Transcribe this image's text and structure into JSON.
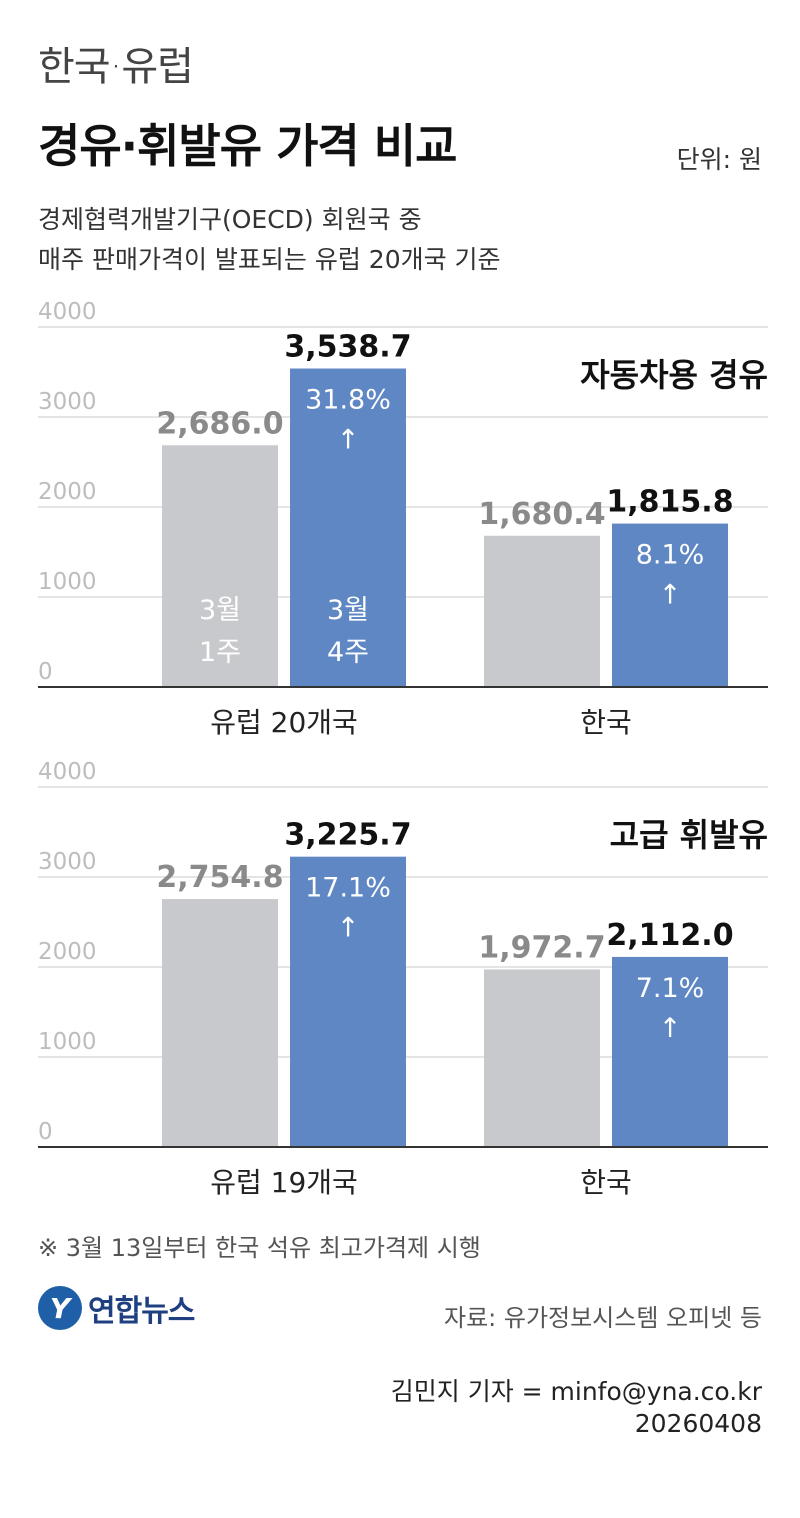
{
  "header": {
    "title_top": "한국·유럽",
    "title_main": "경유·휘발유 가격 비교",
    "unit": "단위: 원",
    "subtitle_line1": "경제협력개발기구(OECD) 회원국 중",
    "subtitle_line2": "매주 판매가격이 발표되는 유럽 20개국 기준"
  },
  "chart_data": [
    {
      "type": "bar",
      "title": "자동차용 경유",
      "categories": [
        "유럽 20개국",
        "한국"
      ],
      "yticks": [
        "0",
        "1000",
        "2000",
        "3000",
        "4000"
      ],
      "ylim": [
        0,
        4000
      ],
      "series": [
        {
          "name": "3월 1주",
          "values": [
            2686.0,
            1680.4
          ],
          "labels": [
            "2,686.0",
            "1,680.4"
          ],
          "color": "#c8c9cc"
        },
        {
          "name": "3월 4주",
          "values": [
            3538.7,
            1815.8
          ],
          "labels": [
            "3,538.7",
            "1,815.8"
          ],
          "color": "#5f87c4"
        }
      ],
      "changes": [
        "31.8%",
        "8.1%"
      ],
      "grid": true
    },
    {
      "type": "bar",
      "title": "고급 휘발유",
      "categories": [
        "유럽 19개국",
        "한국"
      ],
      "yticks": [
        "0",
        "1000",
        "2000",
        "3000",
        "4000"
      ],
      "ylim": [
        0,
        4000
      ],
      "series": [
        {
          "values": [
            2754.8,
            1972.7
          ],
          "labels": [
            "2,754.8",
            "1,972.7"
          ],
          "color": "#c8c9cc"
        },
        {
          "values": [
            3225.7,
            2112.0
          ],
          "labels": [
            "3,225.7",
            "2,112.0"
          ],
          "color": "#5f87c4"
        }
      ],
      "changes": [
        "17.1%",
        "7.1%"
      ],
      "grid": true
    }
  ],
  "arrow_glyph": "↑",
  "footer": {
    "footnote": "※ 3월 13일부터 한국 석유 최고가격제 시행",
    "logo_text": "연합뉴스",
    "logo_mark": "Y",
    "source": "자료: 유가정보시스템 오피넷 등",
    "credit": "김민지 기자 = minfo@yna.co.kr",
    "date": "20260408"
  }
}
